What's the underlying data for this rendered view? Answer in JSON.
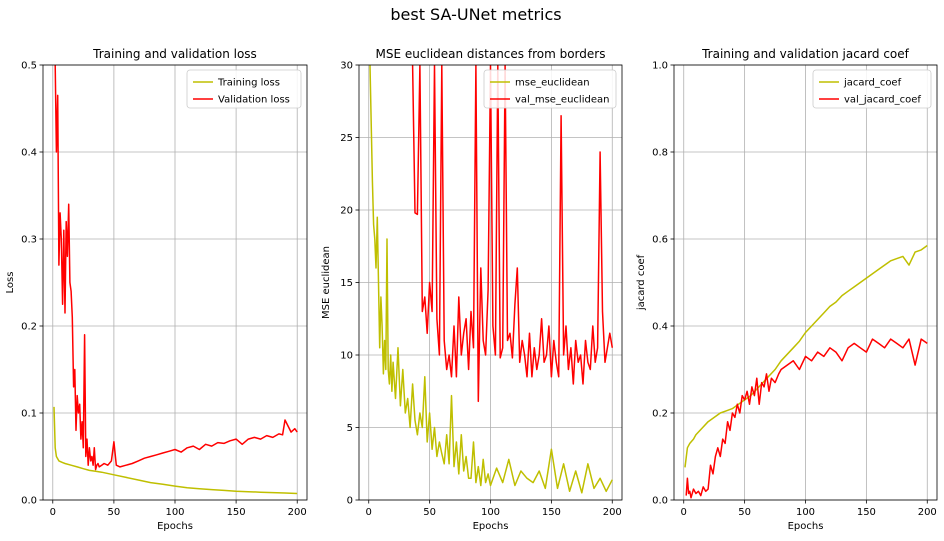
{
  "figure": {
    "suptitle": "best SA-UNet metrics"
  },
  "colors": {
    "train": "#bfbf00",
    "val": "#ff0000",
    "grid": "#b0b0b0"
  },
  "chart_data": [
    {
      "type": "line",
      "title": "Training and validation loss",
      "xlabel": "Epochs",
      "ylabel": "Loss",
      "xlim": [
        -8,
        208
      ],
      "ylim": [
        0,
        0.5
      ],
      "xticks": [
        0,
        50,
        100,
        150,
        200
      ],
      "xtick_labels": [
        "0",
        "50",
        "100",
        "150",
        "200"
      ],
      "yticks": [
        0,
        0.1,
        0.2,
        0.3,
        0.4,
        0.5
      ],
      "ytick_labels": [
        "0.0",
        "0.1",
        "0.2",
        "0.3",
        "0.4",
        "0.5"
      ],
      "grid": true,
      "legend_position": "top-right",
      "series": [
        {
          "name": "Training loss",
          "color": "#bfbf00",
          "x": [
            1,
            2,
            3,
            5,
            8,
            10,
            15,
            20,
            25,
            30,
            35,
            40,
            50,
            60,
            70,
            80,
            90,
            100,
            110,
            120,
            130,
            140,
            150,
            160,
            170,
            180,
            190,
            200
          ],
          "y": [
            0.107,
            0.06,
            0.05,
            0.045,
            0.043,
            0.042,
            0.04,
            0.038,
            0.036,
            0.034,
            0.033,
            0.032,
            0.029,
            0.026,
            0.023,
            0.02,
            0.018,
            0.016,
            0.014,
            0.013,
            0.012,
            0.011,
            0.01,
            0.0095,
            0.009,
            0.0085,
            0.008,
            0.0075
          ]
        },
        {
          "name": "Validation loss",
          "color": "#ff0000",
          "x": [
            2,
            3,
            4,
            5,
            6,
            7,
            8,
            9,
            10,
            11,
            12,
            13,
            14,
            15,
            16,
            17,
            18,
            19,
            20,
            21,
            22,
            23,
            24,
            25,
            26,
            27,
            28,
            29,
            30,
            31,
            32,
            33,
            34,
            35,
            36,
            37,
            38,
            40,
            42,
            45,
            48,
            50,
            52,
            55,
            60,
            65,
            70,
            75,
            80,
            85,
            90,
            95,
            100,
            105,
            110,
            115,
            120,
            125,
            130,
            135,
            140,
            145,
            150,
            155,
            160,
            165,
            170,
            175,
            180,
            185,
            188,
            190,
            195,
            198,
            200
          ],
          "y": [
            0.5,
            0.4,
            0.465,
            0.27,
            0.33,
            0.3,
            0.225,
            0.31,
            0.215,
            0.32,
            0.28,
            0.34,
            0.25,
            0.24,
            0.21,
            0.13,
            0.15,
            0.08,
            0.12,
            0.1,
            0.11,
            0.07,
            0.09,
            0.06,
            0.19,
            0.05,
            0.07,
            0.04,
            0.06,
            0.045,
            0.05,
            0.04,
            0.06,
            0.035,
            0.04,
            0.042,
            0.038,
            0.04,
            0.042,
            0.04,
            0.045,
            0.067,
            0.04,
            0.038,
            0.04,
            0.042,
            0.045,
            0.048,
            0.05,
            0.052,
            0.054,
            0.056,
            0.058,
            0.055,
            0.06,
            0.062,
            0.058,
            0.064,
            0.062,
            0.066,
            0.065,
            0.068,
            0.07,
            0.064,
            0.07,
            0.072,
            0.07,
            0.074,
            0.072,
            0.076,
            0.075,
            0.092,
            0.078,
            0.082,
            0.078
          ]
        }
      ]
    },
    {
      "type": "line",
      "title": "MSE euclidean distances from borders",
      "xlabel": "Epochs",
      "ylabel": "MSE euclidean",
      "xlim": [
        -8,
        208
      ],
      "ylim": [
        0,
        30
      ],
      "xticks": [
        0,
        50,
        100,
        150,
        200
      ],
      "xtick_labels": [
        "0",
        "50",
        "100",
        "150",
        "200"
      ],
      "yticks": [
        0,
        5,
        10,
        15,
        20,
        25,
        30
      ],
      "ytick_labels": [
        "0",
        "5",
        "10",
        "15",
        "20",
        "25",
        "30"
      ],
      "grid": true,
      "legend_position": "top-right",
      "series": [
        {
          "name": "mse_euclidean",
          "color": "#bfbf00",
          "x": [
            1,
            3,
            4,
            5,
            6,
            7,
            8,
            9,
            10,
            11,
            12,
            13,
            14,
            15,
            16,
            17,
            18,
            19,
            20,
            22,
            24,
            26,
            28,
            30,
            32,
            34,
            36,
            38,
            40,
            42,
            44,
            46,
            48,
            50,
            52,
            54,
            56,
            58,
            60,
            62,
            64,
            66,
            68,
            70,
            72,
            74,
            76,
            78,
            80,
            82,
            84,
            86,
            88,
            90,
            92,
            94,
            96,
            98,
            100,
            105,
            110,
            115,
            120,
            125,
            130,
            135,
            140,
            145,
            150,
            155,
            160,
            165,
            170,
            175,
            180,
            185,
            190,
            195,
            200
          ],
          "y": [
            30,
            22,
            19,
            18,
            16,
            19.5,
            15,
            10.5,
            14,
            12,
            8.7,
            11,
            9,
            18,
            9,
            8,
            10,
            7.5,
            9.5,
            7,
            10.5,
            6.5,
            9,
            6,
            7,
            5,
            8,
            5.5,
            4.5,
            6,
            5,
            8.5,
            4,
            6,
            3.5,
            5,
            3,
            4,
            3.2,
            2.5,
            4.5,
            2.5,
            7.2,
            2.3,
            4,
            1.8,
            4.5,
            2,
            3,
            1.5,
            1.5,
            4,
            1.2,
            2.3,
            1,
            2.8,
            1.2,
            1.8,
            1,
            2.2,
            1.2,
            2.8,
            1,
            2,
            1.5,
            1.2,
            2,
            0.8,
            3.5,
            0.8,
            2.5,
            0.6,
            2,
            0.5,
            2.5,
            0.8,
            1.5,
            0.6,
            1.4
          ]
        },
        {
          "name": "val_mse_euclidean",
          "color": "#ff0000",
          "x": [
            36,
            38,
            40,
            42,
            44,
            46,
            48,
            50,
            52,
            54,
            56,
            58,
            60,
            62,
            64,
            66,
            68,
            70,
            72,
            74,
            76,
            78,
            80,
            82,
            84,
            86,
            88,
            90,
            92,
            94,
            96,
            98,
            100,
            102,
            104,
            106,
            108,
            110,
            112,
            114,
            116,
            118,
            120,
            122,
            124,
            126,
            128,
            130,
            132,
            134,
            136,
            138,
            140,
            142,
            144,
            146,
            148,
            150,
            152,
            154,
            156,
            158,
            160,
            162,
            164,
            166,
            168,
            170,
            172,
            174,
            176,
            178,
            180,
            182,
            184,
            186,
            188,
            190,
            192,
            194,
            196,
            198,
            200
          ],
          "y": [
            30,
            19.8,
            19.7,
            30,
            13,
            14,
            11.5,
            15,
            13,
            30,
            12.5,
            10,
            30,
            11,
            9,
            10,
            8.5,
            12,
            8.5,
            14,
            10,
            11.5,
            12.5,
            9,
            13,
            10.5,
            30,
            6.8,
            16,
            11,
            10,
            14.5,
            30,
            12,
            10,
            30,
            9.8,
            10.5,
            30,
            11,
            11.5,
            9.8,
            13.5,
            16,
            9.5,
            11,
            10,
            8.5,
            11.5,
            8.5,
            10.5,
            9,
            10,
            12.5,
            9.5,
            10,
            12,
            8.5,
            11,
            9.5,
            8.5,
            26.5,
            10,
            12,
            9,
            10.5,
            8,
            11,
            9.5,
            10,
            8,
            11,
            9.5,
            9,
            12,
            9.5,
            10.5,
            24,
            13,
            9.5,
            10.5,
            11.5,
            10.5
          ]
        }
      ]
    },
    {
      "type": "line",
      "title": "Training and validation jacard coef",
      "xlabel": "Epochs",
      "ylabel": "jacard coef",
      "xlim": [
        -8,
        208
      ],
      "ylim": [
        0,
        1
      ],
      "xticks": [
        0,
        50,
        100,
        150,
        200
      ],
      "xtick_labels": [
        "0",
        "50",
        "100",
        "150",
        "200"
      ],
      "yticks": [
        0,
        0.2,
        0.4,
        0.6,
        0.8,
        1.0
      ],
      "ytick_labels": [
        "0.0",
        "0.2",
        "0.4",
        "0.6",
        "0.8",
        "1.0"
      ],
      "grid": true,
      "legend_position": "top-right",
      "series": [
        {
          "name": "jacard_coef",
          "color": "#bfbf00",
          "x": [
            1,
            3,
            5,
            8,
            10,
            15,
            20,
            25,
            30,
            35,
            40,
            45,
            50,
            55,
            60,
            65,
            70,
            75,
            80,
            85,
            90,
            95,
            100,
            105,
            110,
            115,
            120,
            125,
            130,
            135,
            140,
            145,
            150,
            155,
            160,
            165,
            170,
            175,
            180,
            185,
            190,
            195,
            200
          ],
          "y": [
            0.075,
            0.12,
            0.13,
            0.14,
            0.15,
            0.165,
            0.18,
            0.19,
            0.2,
            0.205,
            0.21,
            0.22,
            0.23,
            0.24,
            0.255,
            0.27,
            0.285,
            0.3,
            0.32,
            0.335,
            0.35,
            0.365,
            0.385,
            0.4,
            0.415,
            0.43,
            0.445,
            0.455,
            0.47,
            0.48,
            0.49,
            0.5,
            0.51,
            0.52,
            0.53,
            0.54,
            0.55,
            0.555,
            0.56,
            0.54,
            0.57,
            0.575,
            0.585
          ]
        },
        {
          "name": "val_jacard_coef",
          "color": "#ff0000",
          "x": [
            2,
            3,
            4,
            5,
            6,
            8,
            10,
            12,
            14,
            16,
            18,
            20,
            22,
            24,
            26,
            28,
            30,
            32,
            34,
            36,
            38,
            40,
            42,
            44,
            46,
            48,
            50,
            52,
            54,
            56,
            58,
            60,
            62,
            64,
            66,
            68,
            70,
            72,
            75,
            78,
            80,
            85,
            90,
            95,
            100,
            105,
            110,
            115,
            120,
            125,
            130,
            135,
            140,
            145,
            150,
            155,
            160,
            165,
            170,
            175,
            180,
            185,
            190,
            195,
            200
          ],
          "y": [
            0.01,
            0.05,
            0.015,
            0.02,
            0.005,
            0.025,
            0.015,
            0.02,
            0.01,
            0.03,
            0.02,
            0.025,
            0.08,
            0.06,
            0.1,
            0.12,
            0.1,
            0.14,
            0.13,
            0.18,
            0.16,
            0.2,
            0.19,
            0.22,
            0.2,
            0.24,
            0.23,
            0.25,
            0.22,
            0.26,
            0.24,
            0.28,
            0.22,
            0.27,
            0.26,
            0.29,
            0.25,
            0.28,
            0.27,
            0.29,
            0.3,
            0.31,
            0.32,
            0.3,
            0.33,
            0.32,
            0.34,
            0.33,
            0.35,
            0.34,
            0.32,
            0.35,
            0.36,
            0.35,
            0.34,
            0.37,
            0.36,
            0.35,
            0.37,
            0.36,
            0.35,
            0.37,
            0.31,
            0.37,
            0.36
          ]
        }
      ]
    }
  ]
}
